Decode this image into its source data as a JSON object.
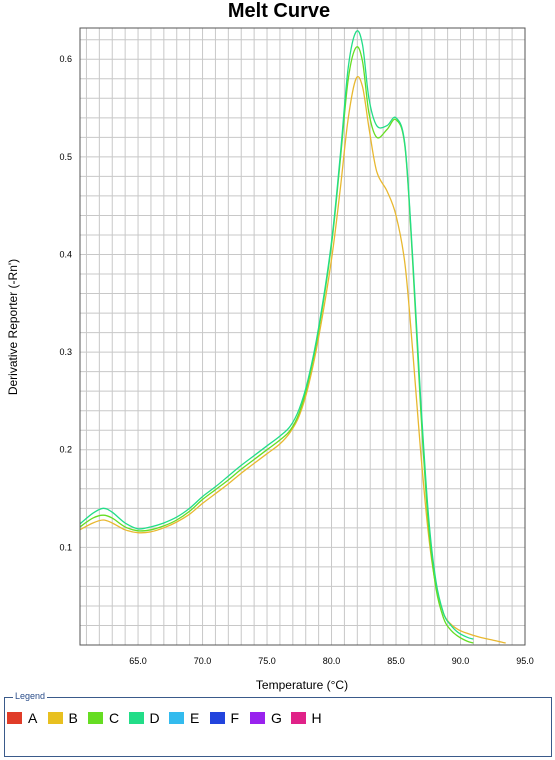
{
  "chart_data": {
    "type": "line",
    "title": "Melt Curve",
    "xlabel": "Temperature (°C)",
    "ylabel": "Derivative Reporter (-Rn')",
    "xlim": [
      60.5,
      95.0
    ],
    "ylim": [
      0.0,
      0.632
    ],
    "x_ticks": [
      65.0,
      70.0,
      75.0,
      80.0,
      85.0,
      90.0,
      95.0
    ],
    "x_tick_labels": [
      "65.0",
      "70.0",
      "75.0",
      "80.0",
      "85.0",
      "90.0",
      "95.0"
    ],
    "x_minor_step": 1.0,
    "y_ticks": [
      0.1,
      0.2,
      0.3,
      0.4,
      0.5,
      0.6
    ],
    "y_tick_labels": [
      "0.1",
      "0.2",
      "0.3",
      "0.4",
      "0.5",
      "0.6"
    ],
    "y_minor_step": 0.02,
    "grid": true,
    "series": [
      {
        "name": "B",
        "color": "#e8b830",
        "x": [
          60.5,
          61.5,
          62.3,
          63.0,
          64.0,
          65.0,
          66.0,
          67.0,
          68.0,
          69.0,
          70.0,
          71.0,
          72.0,
          73.0,
          74.0,
          75.0,
          76.0,
          76.8,
          77.5,
          78.2,
          79.0,
          80.0,
          80.7,
          81.3,
          81.9,
          82.4,
          82.9,
          83.5,
          84.3,
          85.0,
          85.7,
          86.3,
          86.9,
          87.5,
          88.1,
          88.7,
          89.2,
          89.8,
          90.5,
          91.5,
          92.5,
          93.5
        ],
        "y": [
          0.118,
          0.125,
          0.128,
          0.125,
          0.118,
          0.115,
          0.116,
          0.12,
          0.126,
          0.134,
          0.145,
          0.155,
          0.165,
          0.176,
          0.186,
          0.196,
          0.206,
          0.218,
          0.235,
          0.265,
          0.315,
          0.395,
          0.47,
          0.54,
          0.58,
          0.572,
          0.53,
          0.485,
          0.465,
          0.44,
          0.39,
          0.3,
          0.2,
          0.115,
          0.06,
          0.032,
          0.022,
          0.016,
          0.012,
          0.008,
          0.005,
          0.002
        ]
      },
      {
        "name": "C",
        "color": "#66dd22",
        "x": [
          60.5,
          61.5,
          62.3,
          63.0,
          64.0,
          65.0,
          66.0,
          67.0,
          68.0,
          69.0,
          70.0,
          71.0,
          72.0,
          73.0,
          74.0,
          75.0,
          76.0,
          76.8,
          77.5,
          78.2,
          79.0,
          80.0,
          80.7,
          81.3,
          81.9,
          82.4,
          82.9,
          83.5,
          84.3,
          85.0,
          85.7,
          86.3,
          86.9,
          87.5,
          88.1,
          88.7,
          89.2,
          89.8,
          90.5,
          91.0
        ],
        "y": [
          0.121,
          0.13,
          0.133,
          0.13,
          0.121,
          0.117,
          0.118,
          0.122,
          0.128,
          0.137,
          0.149,
          0.159,
          0.169,
          0.18,
          0.19,
          0.2,
          0.21,
          0.22,
          0.238,
          0.27,
          0.322,
          0.41,
          0.5,
          0.58,
          0.612,
          0.598,
          0.545,
          0.52,
          0.528,
          0.538,
          0.51,
          0.39,
          0.245,
          0.125,
          0.058,
          0.027,
          0.016,
          0.009,
          0.004,
          0.002
        ]
      },
      {
        "name": "D",
        "color": "#22dd88",
        "x": [
          60.5,
          61.5,
          62.3,
          63.0,
          64.0,
          65.0,
          66.0,
          67.0,
          68.0,
          69.0,
          70.0,
          71.0,
          72.0,
          73.0,
          74.0,
          75.0,
          76.0,
          76.8,
          77.5,
          78.2,
          79.0,
          80.0,
          80.7,
          81.3,
          81.9,
          82.4,
          82.9,
          83.5,
          84.3,
          85.0,
          85.7,
          86.3,
          86.9,
          87.5,
          88.1,
          88.7,
          89.2,
          89.8,
          90.5,
          91.0
        ],
        "y": [
          0.124,
          0.135,
          0.14,
          0.136,
          0.125,
          0.119,
          0.121,
          0.125,
          0.131,
          0.14,
          0.152,
          0.162,
          0.173,
          0.184,
          0.194,
          0.204,
          0.214,
          0.224,
          0.242,
          0.273,
          0.325,
          0.413,
          0.505,
          0.592,
          0.628,
          0.615,
          0.56,
          0.532,
          0.532,
          0.54,
          0.512,
          0.395,
          0.255,
          0.135,
          0.065,
          0.032,
          0.021,
          0.013,
          0.008,
          0.006
        ]
      }
    ],
    "legend": {
      "title": "Legend",
      "position": "bottom",
      "entries": [
        {
          "label": "A",
          "color": "#e03c28"
        },
        {
          "label": "B",
          "color": "#e8c020"
        },
        {
          "label": "C",
          "color": "#66dd22"
        },
        {
          "label": "D",
          "color": "#22dd88"
        },
        {
          "label": "E",
          "color": "#33bbee"
        },
        {
          "label": "F",
          "color": "#2244dd"
        },
        {
          "label": "G",
          "color": "#9922ee"
        },
        {
          "label": "H",
          "color": "#e02288"
        }
      ]
    }
  }
}
